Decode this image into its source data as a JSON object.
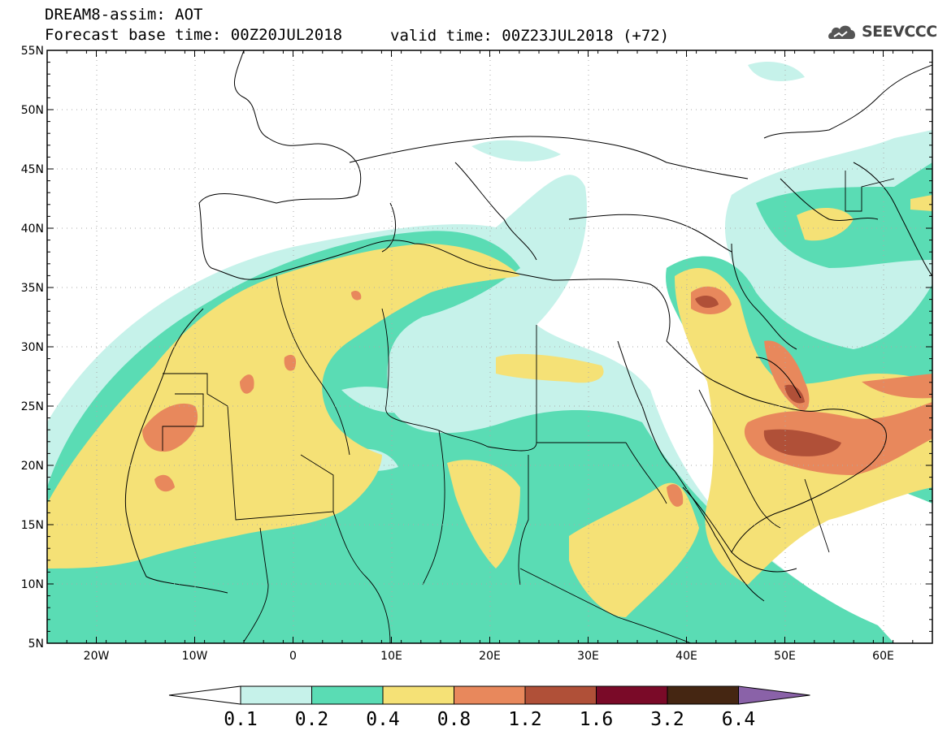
{
  "header": {
    "title": "DREAM8-assim: AOT",
    "base_time": "Forecast base time: 00Z20JUL2018",
    "valid_time": "valid time: 00Z23JUL2018 (+72)",
    "logo_text": "SEEVCCC"
  },
  "map": {
    "lat_ticks": [
      "55N",
      "50N",
      "45N",
      "40N",
      "35N",
      "30N",
      "25N",
      "20N",
      "15N",
      "10N",
      "5N"
    ],
    "lon_ticks": [
      "20W",
      "10W",
      "0",
      "10E",
      "20E",
      "30E",
      "40E",
      "50E",
      "60E"
    ],
    "lon_range": [
      -25,
      65
    ],
    "lat_range": [
      5,
      55
    ]
  },
  "colorbar": {
    "labels": [
      "0.1",
      "0.2",
      "0.4",
      "0.8",
      "1.2",
      "1.6",
      "3.2",
      "6.4"
    ],
    "colors": {
      "lt01": "#ffffff",
      "c01": "#c6f2ea",
      "c02": "#5adcb4",
      "c04": "#f5e176",
      "c08": "#e8885c",
      "c12": "#b05038",
      "c16": "#7a0a28",
      "c32": "#452612",
      "c64": "#8a62a8"
    }
  }
}
